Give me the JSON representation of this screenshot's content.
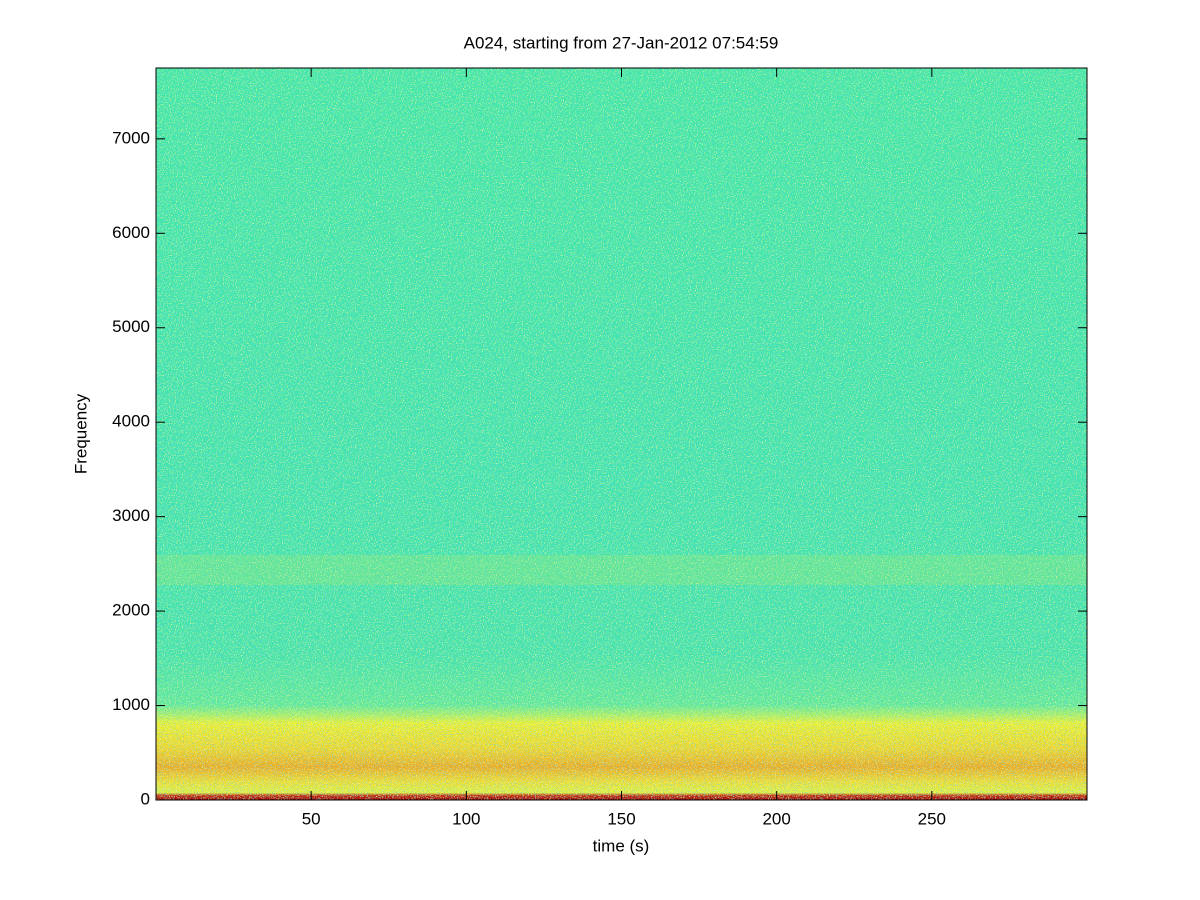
{
  "chart_data": {
    "type": "spectrogram",
    "title": "A024, starting from 27-Jan-2012 07:54:59",
    "xlabel": "time (s)",
    "ylabel": "Frequency",
    "xlim": [
      0,
      300
    ],
    "xticks": [
      50,
      100,
      150,
      200,
      250
    ],
    "ylim": [
      0,
      7750
    ],
    "yticks": [
      0,
      1000,
      2000,
      3000,
      4000,
      5000,
      6000,
      7000
    ]
  }
}
